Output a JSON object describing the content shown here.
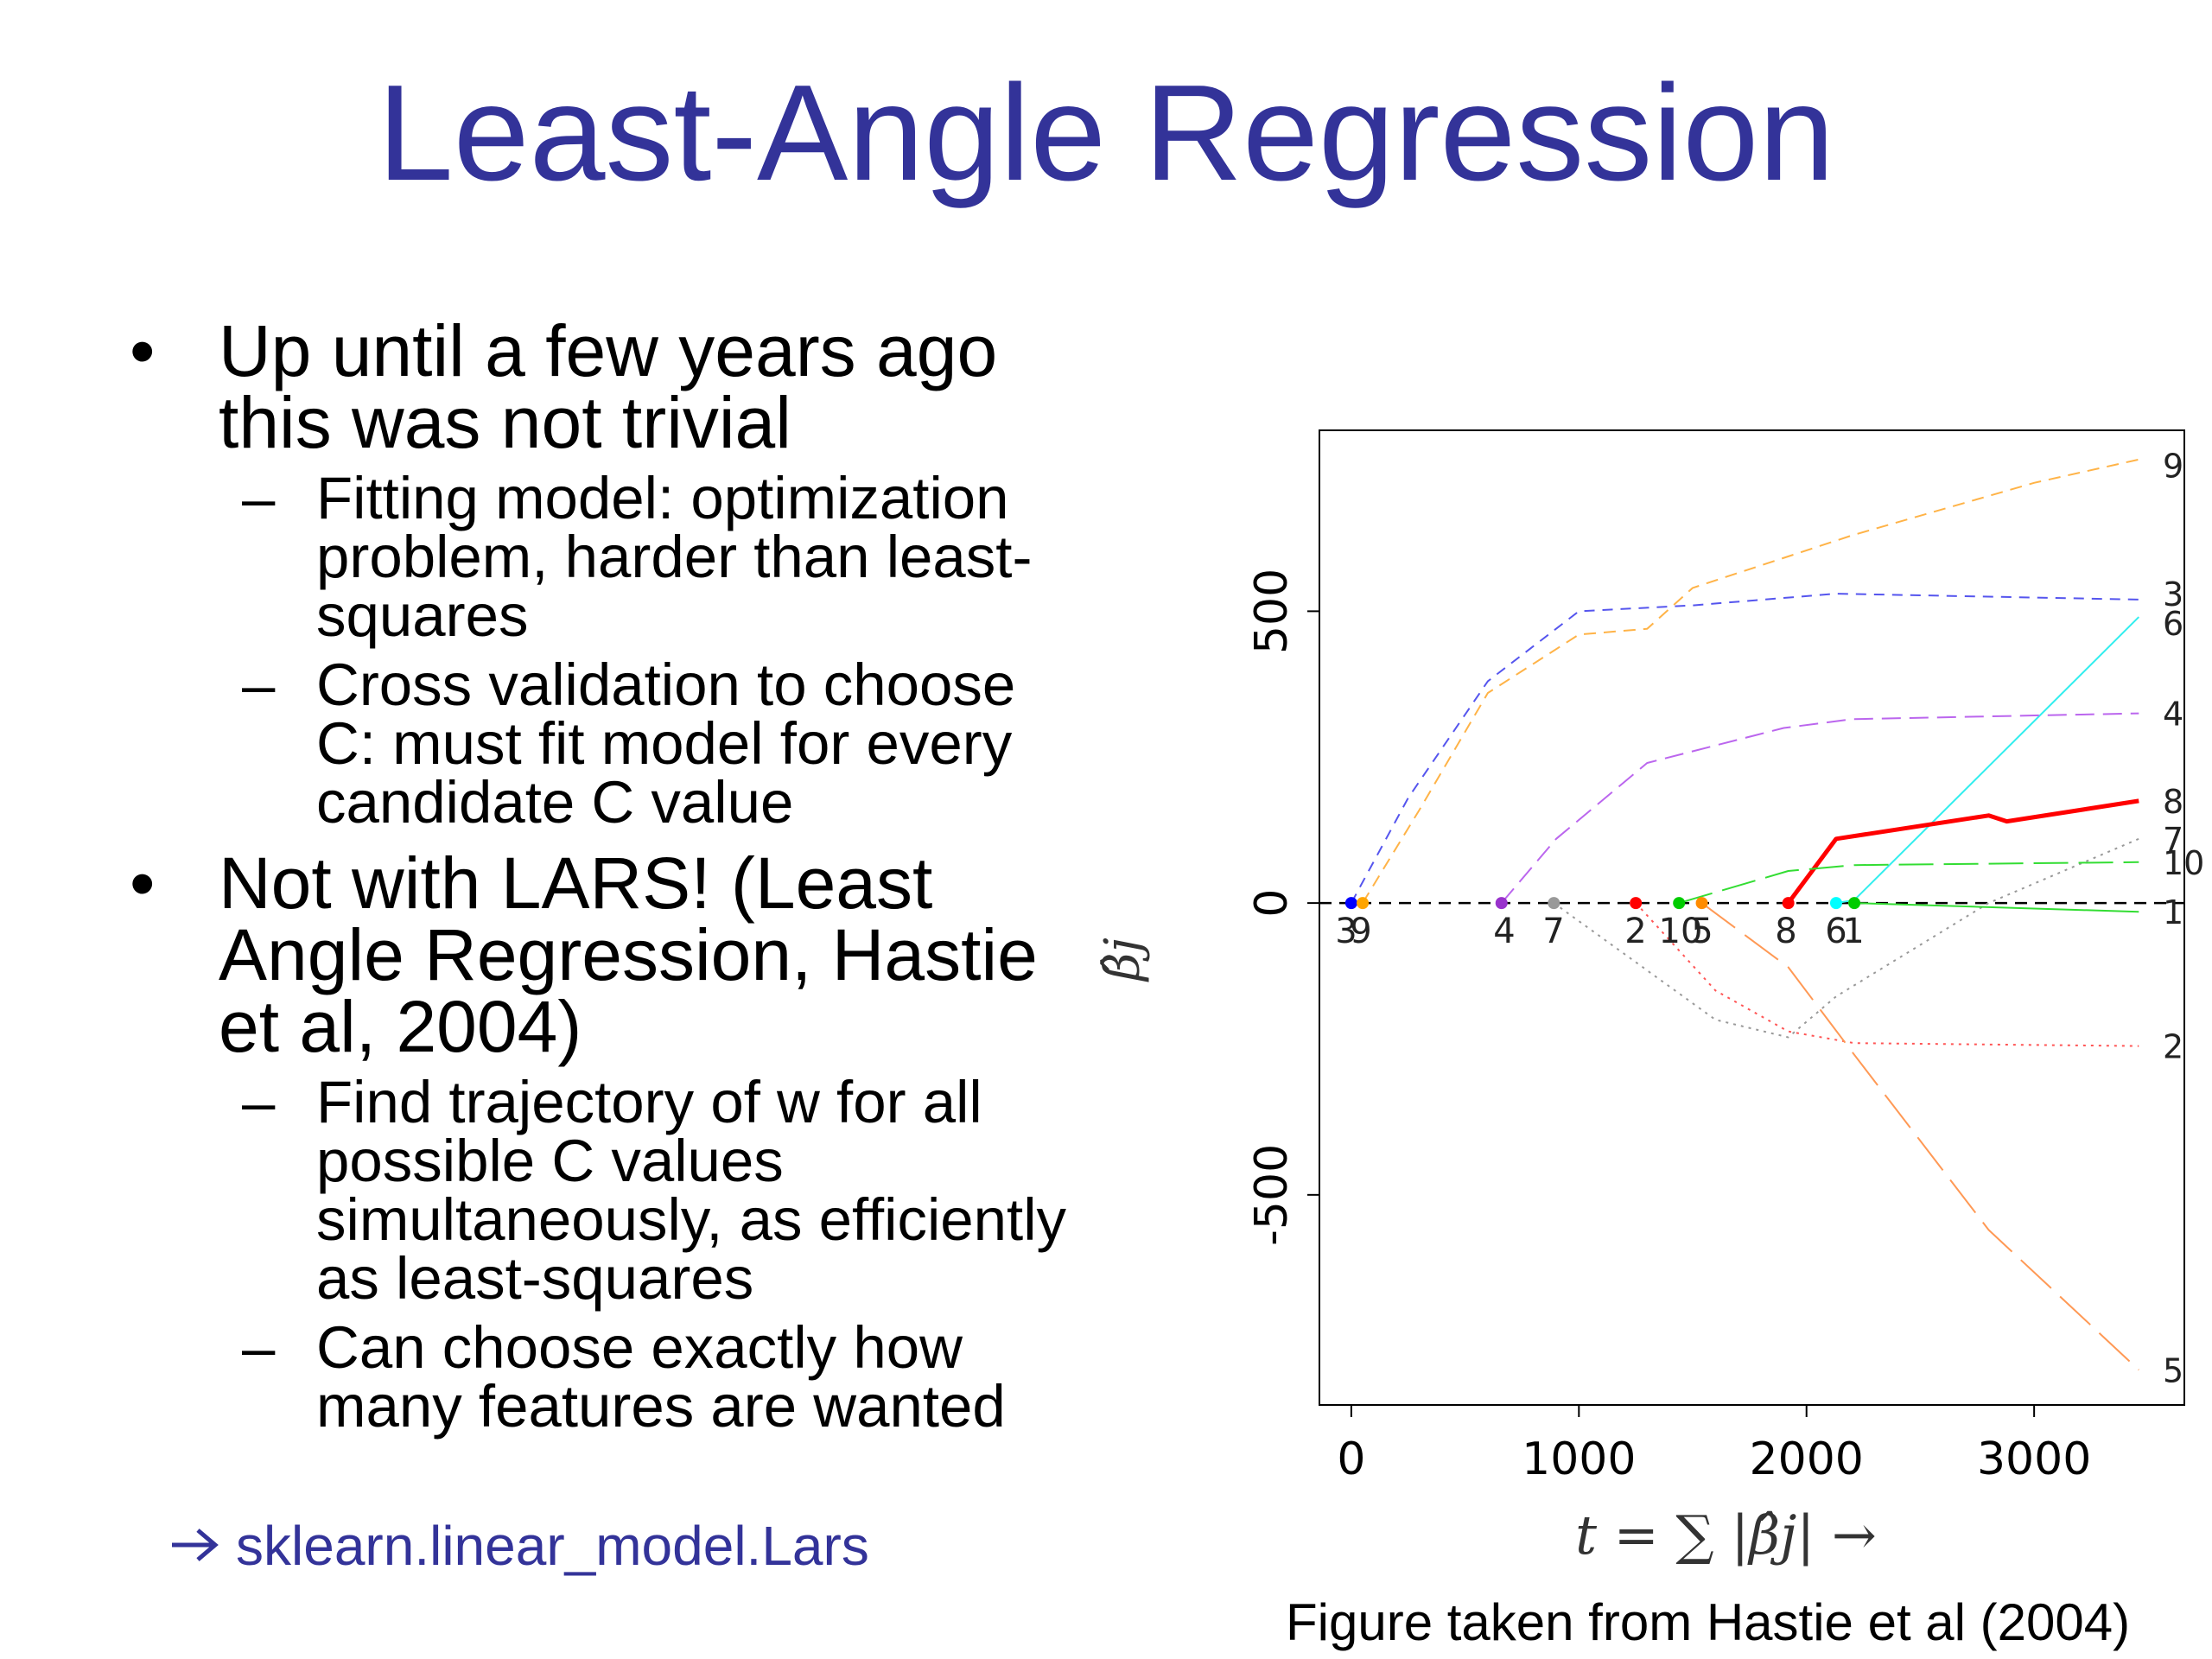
{
  "slide": {
    "title": "Least-Angle Regression",
    "bullets": [
      {
        "text": "Up until a few years ago this was not trivial",
        "subs": [
          "Fitting model: optimization problem, harder than least-squares",
          "Cross validation to choose C: must fit model for every candidate C value"
        ]
      },
      {
        "text": "Not with LARS! (Least Angle Regression, Hastie et al, 2004)",
        "subs": [
          "Find trajectory of w for all possible C values simultaneously, as efficiently as least-squares",
          "Can choose exactly how many features are wanted"
        ]
      }
    ],
    "link_text": "sklearn.linear_model.Lars",
    "caption": "Figure taken from Hastie et al (2004)",
    "colors": {
      "title": "#333399",
      "link": "#333399"
    },
    "icons": {
      "bullet": "•",
      "dash": "–",
      "arrow": "arrow-right-icon"
    }
  },
  "chart_data": {
    "type": "line",
    "xlabel": "t = ∑ |β̂j| →",
    "ylabel": "β̂j",
    "xlim": [
      -140,
      3660
    ],
    "ylim": [
      -860,
      810
    ],
    "xticks": [
      0,
      1000,
      2000,
      3000
    ],
    "yticks": [
      -500,
      0,
      500
    ],
    "zero_line": true,
    "entry_labels": [
      "3",
      "9",
      "4",
      "7",
      "2",
      "10",
      "5",
      "8",
      "6",
      "1"
    ],
    "entry_points": [
      {
        "x": 0,
        "label": "3",
        "color": "#0000ff"
      },
      {
        "x": 50,
        "label": "9",
        "color": "#ffa500"
      },
      {
        "x": 660,
        "label": "4",
        "color": "#9932cc"
      },
      {
        "x": 890,
        "label": "7",
        "color": "#999999"
      },
      {
        "x": 1250,
        "label": "2",
        "color": "#ff0000"
      },
      {
        "x": 1440,
        "label": "10",
        "color": "#00cc00"
      },
      {
        "x": 1540,
        "label": "5",
        "color": "#ff8c00"
      },
      {
        "x": 1920,
        "label": "8",
        "color": "#ff0000"
      },
      {
        "x": 2130,
        "label": "6",
        "color": "#00ffff"
      },
      {
        "x": 2210,
        "label": "1",
        "color": "#00cc00"
      }
    ],
    "series": [
      {
        "name": "9",
        "color": "#ffb347",
        "dash": "14,9",
        "width": 2,
        "points": [
          [
            50,
            0
          ],
          [
            300,
            160
          ],
          [
            600,
            360
          ],
          [
            1000,
            460
          ],
          [
            1300,
            470
          ],
          [
            1500,
            540
          ],
          [
            2200,
            630
          ],
          [
            3000,
            720
          ],
          [
            3460,
            760
          ]
        ]
      },
      {
        "name": "3",
        "color": "#5555ee",
        "dash": "12,9",
        "width": 2,
        "points": [
          [
            0,
            0
          ],
          [
            250,
            180
          ],
          [
            600,
            380
          ],
          [
            1000,
            500
          ],
          [
            1500,
            510
          ],
          [
            2130,
            530
          ],
          [
            3460,
            520
          ]
        ]
      },
      {
        "name": "6",
        "color": "#33eeee",
        "dash": "",
        "width": 2,
        "points": [
          [
            2130,
            0
          ],
          [
            2210,
            5
          ],
          [
            3460,
            490
          ]
        ]
      },
      {
        "name": "4",
        "color": "#bb66ee",
        "dash": "22,10",
        "width": 2,
        "points": [
          [
            660,
            0
          ],
          [
            900,
            110
          ],
          [
            1300,
            240
          ],
          [
            1900,
            300
          ],
          [
            2200,
            315
          ],
          [
            3460,
            325
          ]
        ]
      },
      {
        "name": "8",
        "color": "#ff0000",
        "dash": "",
        "width": 5,
        "points": [
          [
            1920,
            0
          ],
          [
            2130,
            110
          ],
          [
            2800,
            150
          ],
          [
            2880,
            140
          ],
          [
            3460,
            175
          ]
        ]
      },
      {
        "name": "7",
        "color": "#999999",
        "dash": "3,6",
        "width": 2,
        "points": [
          [
            890,
            0
          ],
          [
            1600,
            -200
          ],
          [
            1920,
            -230
          ],
          [
            2130,
            -160
          ],
          [
            2800,
            0
          ],
          [
            3460,
            110
          ]
        ]
      },
      {
        "name": "10",
        "color": "#33dd33",
        "dash": "40,12",
        "width": 2,
        "points": [
          [
            1440,
            0
          ],
          [
            1920,
            55
          ],
          [
            2210,
            65
          ],
          [
            3460,
            70
          ]
        ]
      },
      {
        "name": "1",
        "color": "#33dd33",
        "dash": "",
        "width": 2,
        "points": [
          [
            2210,
            0
          ],
          [
            3460,
            -15
          ]
        ]
      },
      {
        "name": "2",
        "color": "#ff5555",
        "dash": "3,6",
        "width": 2,
        "points": [
          [
            1250,
            0
          ],
          [
            1600,
            -150
          ],
          [
            1920,
            -220
          ],
          [
            2210,
            -240
          ],
          [
            3460,
            -245
          ]
        ]
      },
      {
        "name": "5",
        "color": "#ff9955",
        "dash": "48,14",
        "width": 2,
        "points": [
          [
            1540,
            0
          ],
          [
            1920,
            -110
          ],
          [
            2210,
            -260
          ],
          [
            2800,
            -560
          ],
          [
            3460,
            -800
          ]
        ]
      }
    ],
    "end_labels": [
      {
        "text": "9",
        "y": 750
      },
      {
        "text": "3",
        "y": 530
      },
      {
        "text": "6",
        "y": 480
      },
      {
        "text": "4",
        "y": 325
      },
      {
        "text": "8",
        "y": 175
      },
      {
        "text": "7",
        "y": 110
      },
      {
        "text": "10",
        "y": 70
      },
      {
        "text": "1",
        "y": -15
      },
      {
        "text": "2",
        "y": -245
      },
      {
        "text": "5",
        "y": -800
      }
    ]
  }
}
